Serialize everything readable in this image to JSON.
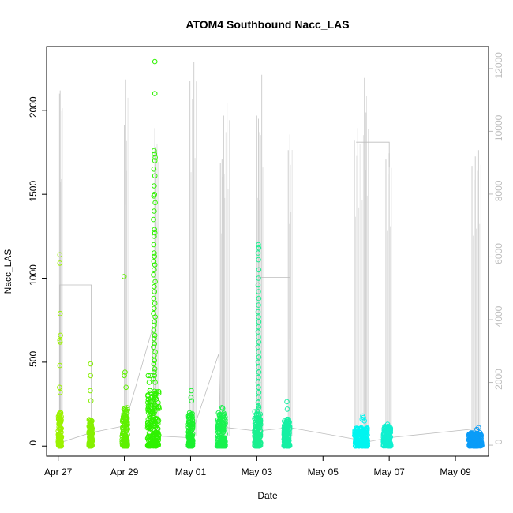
{
  "chart_data": {
    "type": "scatter",
    "title": "ATOM4 Southbound Nacc_LAS",
    "xlabel": "Date",
    "ylabel": "Nacc_LAS",
    "x_range_days": [
      -0.35,
      13.0
    ],
    "ylim": [
      -60,
      2380
    ],
    "y_ticks": [
      0,
      500,
      1000,
      1500,
      2000
    ],
    "y2_lim": [
      -350,
      12700
    ],
    "y2_ticks": [
      0,
      2000,
      4000,
      6000,
      8000,
      10000,
      12000
    ],
    "x_ticks": [
      {
        "day": 0,
        "label": "Apr 27"
      },
      {
        "day": 2,
        "label": "Apr 29"
      },
      {
        "day": 4,
        "label": "May 01"
      },
      {
        "day": 6,
        "label": "May 03"
      },
      {
        "day": 8,
        "label": "May 05"
      },
      {
        "day": 10,
        "label": "May 07"
      },
      {
        "day": 12,
        "label": "May 09"
      }
    ],
    "series": [
      {
        "name": "Nacc_LAS points",
        "axis": "left",
        "color_scale": "green-to-blue by time"
      },
      {
        "name": "secondary trace",
        "axis": "right",
        "color": "#bdbdbd"
      }
    ],
    "clusters": [
      {
        "start": 0.0,
        "end": 0.1,
        "color": "#9cf200",
        "base_max": 200,
        "points": [
          [
            0.05,
            1140
          ],
          [
            0.05,
            1090
          ],
          [
            0.06,
            790
          ],
          [
            0.07,
            660
          ],
          [
            0.05,
            630
          ],
          [
            0.06,
            620
          ],
          [
            0.05,
            480
          ],
          [
            0.04,
            350
          ],
          [
            0.06,
            320
          ]
        ]
      },
      {
        "start": 0.93,
        "end": 1.03,
        "color": "#86f000",
        "base_max": 160,
        "points": [
          [
            0.98,
            490
          ],
          [
            0.98,
            420
          ],
          [
            0.97,
            330
          ],
          [
            0.99,
            270
          ]
        ]
      },
      {
        "start": 1.93,
        "end": 2.1,
        "color": "#5ff000",
        "base_max": 230,
        "points": [
          [
            1.99,
            1010
          ],
          [
            2.02,
            440
          ],
          [
            2.0,
            420
          ],
          [
            2.05,
            350
          ]
        ]
      },
      {
        "start": 2.7,
        "end": 3.05,
        "color": "#2ff200",
        "base_max": 350,
        "points": [
          [
            2.92,
            2290
          ],
          [
            2.92,
            2100
          ],
          [
            2.9,
            1760
          ],
          [
            2.91,
            1740
          ],
          [
            2.93,
            1720
          ],
          [
            2.92,
            1700
          ],
          [
            2.89,
            1650
          ],
          [
            2.92,
            1610
          ],
          [
            2.9,
            1550
          ],
          [
            2.91,
            1500
          ],
          [
            2.89,
            1490
          ],
          [
            2.93,
            1450
          ],
          [
            2.9,
            1400
          ],
          [
            2.88,
            1350
          ],
          [
            2.91,
            1290
          ],
          [
            2.92,
            1270
          ],
          [
            2.9,
            1250
          ],
          [
            2.89,
            1200
          ],
          [
            2.9,
            1150
          ],
          [
            2.91,
            1130
          ],
          [
            2.89,
            1100
          ],
          [
            2.92,
            1080
          ],
          [
            2.9,
            1050
          ],
          [
            2.88,
            1020
          ],
          [
            2.93,
            980
          ],
          [
            2.9,
            950
          ],
          [
            2.91,
            920
          ],
          [
            2.89,
            880
          ],
          [
            2.92,
            850
          ],
          [
            2.9,
            820
          ],
          [
            2.88,
            790
          ],
          [
            2.93,
            770
          ],
          [
            2.91,
            740
          ],
          [
            2.9,
            720
          ],
          [
            2.89,
            690
          ],
          [
            2.92,
            660
          ],
          [
            2.9,
            640
          ],
          [
            2.91,
            610
          ],
          [
            2.88,
            590
          ],
          [
            2.93,
            560
          ],
          [
            2.9,
            540
          ],
          [
            2.91,
            510
          ],
          [
            2.89,
            490
          ],
          [
            2.92,
            460
          ],
          [
            2.9,
            440
          ],
          [
            2.91,
            420
          ],
          [
            2.88,
            400
          ],
          [
            2.93,
            380
          ],
          [
            2.72,
            420
          ],
          [
            2.75,
            380
          ],
          [
            2.78,
            420
          ]
        ]
      },
      {
        "start": 3.93,
        "end": 4.07,
        "color": "#1bf02e",
        "base_max": 200,
        "points": [
          [
            4.02,
            330
          ],
          [
            4.01,
            290
          ],
          [
            4.03,
            270
          ]
        ]
      },
      {
        "start": 4.8,
        "end": 5.05,
        "color": "#1af24f",
        "base_max": 200,
        "points": [
          [
            4.95,
            230
          ],
          [
            4.97,
            225
          ]
        ]
      },
      {
        "start": 5.93,
        "end": 6.12,
        "color": "#19f090",
        "base_max": 210,
        "points": [
          [
            6.05,
            1200
          ],
          [
            6.06,
            1180
          ],
          [
            6.04,
            1150
          ],
          [
            6.05,
            1110
          ],
          [
            6.06,
            1050
          ],
          [
            6.05,
            1000
          ],
          [
            6.04,
            960
          ],
          [
            6.05,
            920
          ],
          [
            6.06,
            880
          ],
          [
            6.05,
            840
          ],
          [
            6.04,
            800
          ],
          [
            6.05,
            770
          ],
          [
            6.06,
            740
          ],
          [
            6.05,
            710
          ],
          [
            6.04,
            680
          ],
          [
            6.05,
            650
          ],
          [
            6.06,
            620
          ],
          [
            6.04,
            590
          ],
          [
            6.05,
            560
          ],
          [
            6.06,
            530
          ],
          [
            6.04,
            500
          ],
          [
            6.05,
            470
          ],
          [
            6.06,
            440
          ],
          [
            6.05,
            410
          ],
          [
            6.04,
            380
          ],
          [
            6.05,
            350
          ],
          [
            6.06,
            320
          ],
          [
            6.05,
            290
          ],
          [
            6.04,
            260
          ],
          [
            6.05,
            240
          ],
          [
            6.06,
            230
          ],
          [
            6.04,
            220
          ]
        ]
      },
      {
        "start": 6.82,
        "end": 7.0,
        "color": "#17f0a4",
        "base_max": 160,
        "points": [
          [
            6.91,
            265
          ],
          [
            6.92,
            220
          ]
        ]
      },
      {
        "start": 8.95,
        "end": 9.35,
        "color": "#00f5f0",
        "base_max": 110,
        "points": [
          [
            9.2,
            180
          ],
          [
            9.22,
            170
          ],
          [
            9.18,
            160
          ],
          [
            9.25,
            150
          ]
        ]
      },
      {
        "start": 9.82,
        "end": 10.05,
        "color": "#10f0d0",
        "base_max": 120,
        "points": [
          [
            9.95,
            130
          ]
        ]
      },
      {
        "start": 12.4,
        "end": 12.8,
        "color": "#0a9cf8",
        "base_max": 80,
        "points": [
          [
            12.7,
            110
          ],
          [
            12.65,
            100
          ]
        ]
      }
    ],
    "connector_path_days_value": [
      [
        0.05,
        20
      ],
      [
        1.0,
        80
      ],
      [
        2.0,
        120
      ],
      [
        2.85,
        700
      ],
      [
        2.9,
        150
      ],
      [
        3.0,
        60
      ],
      [
        4.0,
        50
      ],
      [
        4.85,
        550
      ],
      [
        4.9,
        130
      ],
      [
        5.1,
        110
      ],
      [
        6.0,
        90
      ],
      [
        7.0,
        110
      ],
      [
        9.0,
        40
      ],
      [
        9.2,
        20
      ],
      [
        10.0,
        50
      ],
      [
        12.45,
        100
      ],
      [
        12.7,
        110
      ]
    ],
    "connector_path_2": [
      [
        0.05,
        40
      ],
      [
        0.05,
        960
      ],
      [
        1.0,
        960
      ],
      [
        1.0,
        20
      ]
    ],
    "connector_path_3": [
      [
        6.05,
        1005
      ],
      [
        7.0,
        1005
      ],
      [
        7.0,
        640
      ]
    ],
    "connector_path_4": [
      [
        9.0,
        1810
      ],
      [
        10.0,
        1810
      ],
      [
        10.0,
        1660
      ]
    ],
    "right_axis_spikes": [
      {
        "day": 0.04,
        "value": 11200
      },
      {
        "day": 0.06,
        "value": 11300
      },
      {
        "day": 2.04,
        "value": 11650
      },
      {
        "day": 2.0,
        "value": 10200
      },
      {
        "day": 2.92,
        "value": 10100
      },
      {
        "day": 2.95,
        "value": 9500
      },
      {
        "day": 3.98,
        "value": 11600
      },
      {
        "day": 4.1,
        "value": 12200
      },
      {
        "day": 4.9,
        "value": 9000
      },
      {
        "day": 4.95,
        "value": 9100
      },
      {
        "day": 5.0,
        "value": 10500
      },
      {
        "day": 5.1,
        "value": 10900
      },
      {
        "day": 6.0,
        "value": 10500
      },
      {
        "day": 6.05,
        "value": 10400
      },
      {
        "day": 6.15,
        "value": 11800
      },
      {
        "day": 6.95,
        "value": 9400
      },
      {
        "day": 7.0,
        "value": 9900
      },
      {
        "day": 8.95,
        "value": 9700
      },
      {
        "day": 9.05,
        "value": 10100
      },
      {
        "day": 9.15,
        "value": 10400
      },
      {
        "day": 9.25,
        "value": 11700
      },
      {
        "day": 9.3,
        "value": 10600
      },
      {
        "day": 9.9,
        "value": 9100
      },
      {
        "day": 10.0,
        "value": 9300
      },
      {
        "day": 12.5,
        "value": 8900
      },
      {
        "day": 12.6,
        "value": 9200
      },
      {
        "day": 12.7,
        "value": 9400
      }
    ]
  }
}
